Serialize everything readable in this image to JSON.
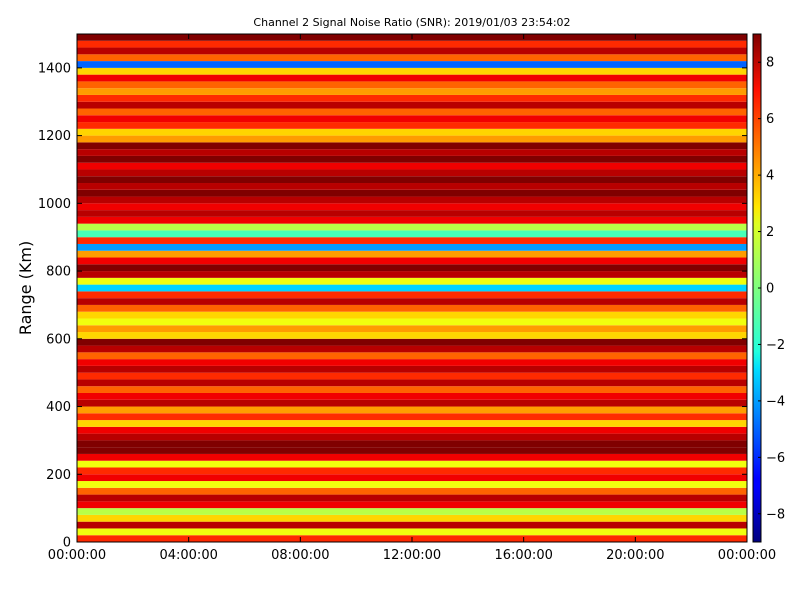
{
  "chart_data": {
    "type": "heatmap",
    "title": "Channel 2 Signal Noise Ratio (SNR): 2019/01/03 23:54:02",
    "xlabel": "",
    "ylabel": "Range (Km)",
    "x_range": [
      "00:00:00",
      "24:00:00"
    ],
    "x_ticks": [
      "00:00:00",
      "04:00:00",
      "08:00:00",
      "12:00:00",
      "16:00:00",
      "20:00:00",
      "00:00:00"
    ],
    "ylim": [
      0,
      1500
    ],
    "y_ticks": [
      "0",
      "200",
      "400",
      "600",
      "800",
      "1000",
      "1200",
      "1400"
    ],
    "y_tick_values": [
      0,
      200,
      400,
      600,
      800,
      1000,
      1200,
      1400
    ],
    "colorbar": {
      "colormap": "jet",
      "range": [
        -9,
        9
      ],
      "ticks": [
        "8",
        "6",
        "4",
        "2",
        "0",
        "−2",
        "−4",
        "−6",
        "−8"
      ],
      "tick_values": [
        8,
        6,
        4,
        2,
        0,
        -2,
        -4,
        -6,
        -8
      ]
    },
    "range_bin_mean_snr": [
      {
        "range_start": 0,
        "range_end": 20,
        "snr": 6
      },
      {
        "range_start": 20,
        "range_end": 40,
        "snr": 2
      },
      {
        "range_start": 40,
        "range_end": 60,
        "snr": 8
      },
      {
        "range_start": 60,
        "range_end": 80,
        "snr": 3
      },
      {
        "range_start": 80,
        "range_end": 100,
        "snr": 1
      },
      {
        "range_start": 100,
        "range_end": 120,
        "snr": 7
      },
      {
        "range_start": 120,
        "range_end": 140,
        "snr": 8
      },
      {
        "range_start": 140,
        "range_end": 160,
        "snr": 5
      },
      {
        "range_start": 160,
        "range_end": 180,
        "snr": 2
      },
      {
        "range_start": 180,
        "range_end": 200,
        "snr": 7
      },
      {
        "range_start": 200,
        "range_end": 220,
        "snr": 6
      },
      {
        "range_start": 220,
        "range_end": 240,
        "snr": 2
      },
      {
        "range_start": 240,
        "range_end": 260,
        "snr": 7
      },
      {
        "range_start": 260,
        "range_end": 280,
        "snr": 9
      },
      {
        "range_start": 280,
        "range_end": 300,
        "snr": 9
      },
      {
        "range_start": 300,
        "range_end": 320,
        "snr": 8
      },
      {
        "range_start": 320,
        "range_end": 340,
        "snr": 7
      },
      {
        "range_start": 340,
        "range_end": 360,
        "snr": 3
      },
      {
        "range_start": 360,
        "range_end": 380,
        "snr": 6
      },
      {
        "range_start": 380,
        "range_end": 400,
        "snr": 4
      },
      {
        "range_start": 400,
        "range_end": 420,
        "snr": 8
      },
      {
        "range_start": 420,
        "range_end": 440,
        "snr": 7
      },
      {
        "range_start": 440,
        "range_end": 460,
        "snr": 5
      },
      {
        "range_start": 460,
        "range_end": 480,
        "snr": 8
      },
      {
        "range_start": 480,
        "range_end": 500,
        "snr": 6
      },
      {
        "range_start": 500,
        "range_end": 520,
        "snr": 8
      },
      {
        "range_start": 520,
        "range_end": 540,
        "snr": 7
      },
      {
        "range_start": 540,
        "range_end": 560,
        "snr": 5
      },
      {
        "range_start": 560,
        "range_end": 580,
        "snr": 8
      },
      {
        "range_start": 580,
        "range_end": 600,
        "snr": 9
      },
      {
        "range_start": 600,
        "range_end": 620,
        "snr": 3
      },
      {
        "range_start": 620,
        "range_end": 640,
        "snr": 4
      },
      {
        "range_start": 640,
        "range_end": 660,
        "snr": 2
      },
      {
        "range_start": 660,
        "range_end": 680,
        "snr": 3
      },
      {
        "range_start": 680,
        "range_end": 700,
        "snr": 5
      },
      {
        "range_start": 700,
        "range_end": 720,
        "snr": 8
      },
      {
        "range_start": 720,
        "range_end": 740,
        "snr": 6
      },
      {
        "range_start": 740,
        "range_end": 760,
        "snr": -3
      },
      {
        "range_start": 760,
        "range_end": 780,
        "snr": 2
      },
      {
        "range_start": 780,
        "range_end": 800,
        "snr": 8
      },
      {
        "range_start": 800,
        "range_end": 820,
        "snr": 9
      },
      {
        "range_start": 820,
        "range_end": 840,
        "snr": 7
      },
      {
        "range_start": 840,
        "range_end": 860,
        "snr": 4
      },
      {
        "range_start": 860,
        "range_end": 880,
        "snr": -4
      },
      {
        "range_start": 880,
        "range_end": 900,
        "snr": 6
      },
      {
        "range_start": 900,
        "range_end": 920,
        "snr": -1
      },
      {
        "range_start": 920,
        "range_end": 940,
        "snr": 1
      },
      {
        "range_start": 940,
        "range_end": 960,
        "snr": 7
      },
      {
        "range_start": 960,
        "range_end": 980,
        "snr": 8
      },
      {
        "range_start": 980,
        "range_end": 1000,
        "snr": 7
      },
      {
        "range_start": 1000,
        "range_end": 1020,
        "snr": 8
      },
      {
        "range_start": 1020,
        "range_end": 1040,
        "snr": 9
      },
      {
        "range_start": 1040,
        "range_end": 1060,
        "snr": 8
      },
      {
        "range_start": 1060,
        "range_end": 1080,
        "snr": 9
      },
      {
        "range_start": 1080,
        "range_end": 1100,
        "snr": 8
      },
      {
        "range_start": 1100,
        "range_end": 1120,
        "snr": 7
      },
      {
        "range_start": 1120,
        "range_end": 1140,
        "snr": 9
      },
      {
        "range_start": 1140,
        "range_end": 1160,
        "snr": 8
      },
      {
        "range_start": 1160,
        "range_end": 1180,
        "snr": 9
      },
      {
        "range_start": 1180,
        "range_end": 1200,
        "snr": 4
      },
      {
        "range_start": 1200,
        "range_end": 1220,
        "snr": 3
      },
      {
        "range_start": 1220,
        "range_end": 1240,
        "snr": 6
      },
      {
        "range_start": 1240,
        "range_end": 1260,
        "snr": 7
      },
      {
        "range_start": 1260,
        "range_end": 1280,
        "snr": 5
      },
      {
        "range_start": 1280,
        "range_end": 1300,
        "snr": 8
      },
      {
        "range_start": 1300,
        "range_end": 1320,
        "snr": 6
      },
      {
        "range_start": 1320,
        "range_end": 1340,
        "snr": 4
      },
      {
        "range_start": 1340,
        "range_end": 1360,
        "snr": 5
      },
      {
        "range_start": 1360,
        "range_end": 1380,
        "snr": 7
      },
      {
        "range_start": 1380,
        "range_end": 1400,
        "snr": 3
      },
      {
        "range_start": 1400,
        "range_end": 1420,
        "snr": -5
      },
      {
        "range_start": 1420,
        "range_end": 1440,
        "snr": 5
      },
      {
        "range_start": 1440,
        "range_end": 1460,
        "snr": 8
      },
      {
        "range_start": 1460,
        "range_end": 1480,
        "snr": 6
      },
      {
        "range_start": 1480,
        "range_end": 1500,
        "snr": 9
      }
    ]
  }
}
